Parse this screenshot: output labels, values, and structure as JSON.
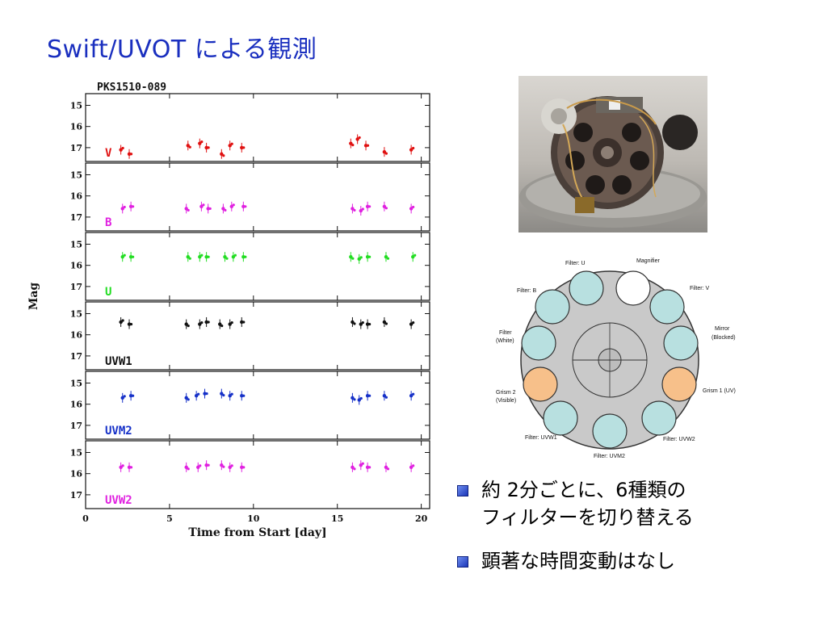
{
  "slide": {
    "title": "Swift/UVOT による観測",
    "bullets": [
      {
        "lines": [
          "約 2分ごとに、6種類の",
          "フィルターを切り替える"
        ]
      },
      {
        "lines": [
          "顕著な時間変動はなし"
        ]
      }
    ]
  },
  "chart_data": {
    "type": "scatter",
    "title": "PKS1510-089",
    "xlabel": "Time from Start [day]",
    "ylabel": "Mag",
    "xlim": [
      0,
      20.5
    ],
    "ylim": [
      17.5,
      14.6
    ],
    "x_ticks": [
      "0",
      "5",
      "10",
      "15",
      "20"
    ],
    "y_ticks": [
      "15",
      "16",
      "17"
    ],
    "y_inverted": true,
    "panels": [
      {
        "name": "V",
        "color": "#e01010",
        "points": [
          [
            2.1,
            17.1
          ],
          [
            2.6,
            17.3
          ],
          [
            6.1,
            16.9
          ],
          [
            6.8,
            16.8
          ],
          [
            7.2,
            17.0
          ],
          [
            8.1,
            17.3
          ],
          [
            8.6,
            16.9
          ],
          [
            9.3,
            17.0
          ],
          [
            15.8,
            16.8
          ],
          [
            16.2,
            16.6
          ],
          [
            16.7,
            16.9
          ],
          [
            17.8,
            17.2
          ],
          [
            19.4,
            17.1
          ]
        ]
      },
      {
        "name": "B",
        "color": "#e020e0",
        "points": [
          [
            2.2,
            16.6
          ],
          [
            2.7,
            16.5
          ],
          [
            6.0,
            16.6
          ],
          [
            6.9,
            16.5
          ],
          [
            7.3,
            16.6
          ],
          [
            8.2,
            16.6
          ],
          [
            8.7,
            16.5
          ],
          [
            9.4,
            16.5
          ],
          [
            15.9,
            16.6
          ],
          [
            16.4,
            16.7
          ],
          [
            16.8,
            16.5
          ],
          [
            17.8,
            16.5
          ],
          [
            19.4,
            16.6
          ]
        ]
      },
      {
        "name": "U",
        "color": "#22dd22",
        "points": [
          [
            2.2,
            15.6
          ],
          [
            2.7,
            15.6
          ],
          [
            6.1,
            15.6
          ],
          [
            6.8,
            15.6
          ],
          [
            7.2,
            15.6
          ],
          [
            8.3,
            15.6
          ],
          [
            8.8,
            15.6
          ],
          [
            9.4,
            15.6
          ],
          [
            15.8,
            15.6
          ],
          [
            16.3,
            15.7
          ],
          [
            16.8,
            15.6
          ],
          [
            17.9,
            15.6
          ],
          [
            19.5,
            15.6
          ]
        ]
      },
      {
        "name": "UVW1",
        "color": "#111111",
        "points": [
          [
            2.1,
            15.4
          ],
          [
            2.6,
            15.5
          ],
          [
            6.0,
            15.5
          ],
          [
            6.8,
            15.5
          ],
          [
            7.2,
            15.4
          ],
          [
            8.0,
            15.5
          ],
          [
            8.6,
            15.5
          ],
          [
            9.3,
            15.4
          ],
          [
            15.9,
            15.4
          ],
          [
            16.4,
            15.5
          ],
          [
            16.8,
            15.5
          ],
          [
            17.8,
            15.4
          ],
          [
            19.4,
            15.5
          ]
        ]
      },
      {
        "name": "UVM2",
        "color": "#1530c8",
        "points": [
          [
            2.2,
            15.7
          ],
          [
            2.7,
            15.6
          ],
          [
            6.0,
            15.7
          ],
          [
            6.6,
            15.6
          ],
          [
            7.1,
            15.5
          ],
          [
            8.1,
            15.5
          ],
          [
            8.6,
            15.6
          ],
          [
            9.3,
            15.6
          ],
          [
            15.9,
            15.7
          ],
          [
            16.3,
            15.8
          ],
          [
            16.8,
            15.6
          ],
          [
            17.8,
            15.6
          ],
          [
            19.4,
            15.6
          ]
        ]
      },
      {
        "name": "UVW2",
        "color": "#e020e0",
        "points": [
          [
            2.1,
            15.7
          ],
          [
            2.6,
            15.7
          ],
          [
            6.0,
            15.7
          ],
          [
            6.7,
            15.7
          ],
          [
            7.2,
            15.6
          ],
          [
            8.1,
            15.6
          ],
          [
            8.6,
            15.7
          ],
          [
            9.3,
            15.7
          ],
          [
            15.9,
            15.7
          ],
          [
            16.4,
            15.6
          ],
          [
            16.8,
            15.7
          ],
          [
            17.9,
            15.7
          ],
          [
            19.4,
            15.7
          ]
        ]
      }
    ]
  },
  "filter_wheel": {
    "labels": [
      {
        "text": "Filter: U",
        "kind": "filter-u"
      },
      {
        "text": "Magnifier",
        "kind": "magnifier"
      },
      {
        "text": "Filter: B",
        "kind": "filter-b"
      },
      {
        "text": "Filter: V",
        "kind": "filter-v"
      },
      {
        "text": "Filter",
        "kind": "filter-white-1"
      },
      {
        "text": "(White)",
        "kind": "filter-white-2"
      },
      {
        "text": "Mirror",
        "kind": "mirror-1"
      },
      {
        "text": "(Blocked)",
        "kind": "mirror-2"
      },
      {
        "text": "Grism 2",
        "kind": "grism2-1"
      },
      {
        "text": "(Visible)",
        "kind": "grism2-2"
      },
      {
        "text": "Grism 1 (UV)",
        "kind": "grism1"
      },
      {
        "text": "Filter: UVW1",
        "kind": "uvw1"
      },
      {
        "text": "Filter: UVW2",
        "kind": "uvw2"
      },
      {
        "text": "Filter: UVM2",
        "kind": "uvm2"
      }
    ],
    "colors": {
      "filter": "#b8e0e0",
      "grism": "#f7c08a",
      "magnifier": "#ffffff",
      "wheel": "#c9c9c9"
    }
  }
}
